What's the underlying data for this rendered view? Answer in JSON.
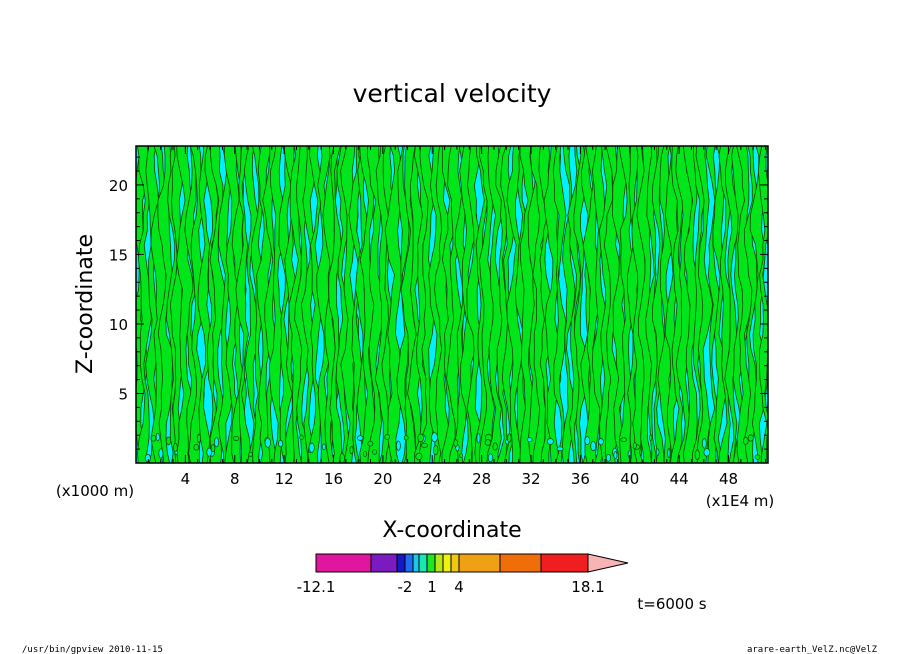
{
  "chart_data": {
    "type": "heatmap",
    "title": "vertical velocity",
    "xlabel": "X-coordinate",
    "ylabel": "Z-coordinate",
    "xunit": "(x1E4 m)",
    "yunit": "(x1000 m)",
    "xlim": [
      0,
      51.2
    ],
    "ylim": [
      0,
      22.8
    ],
    "xticks": [
      "4",
      "8",
      "12",
      "16",
      "20",
      "24",
      "28",
      "32",
      "36",
      "40",
      "44",
      "48"
    ],
    "yticks": [
      "5",
      "10",
      "15",
      "20"
    ],
    "time_label": "t=6000 s",
    "colorbar": {
      "labels": [
        "-12.1",
        "-2",
        "1",
        "4",
        "18.1"
      ],
      "colors": [
        "#e0169e",
        "#7a1bc0",
        "#1419c8",
        "#1f6cf0",
        "#19c8e8",
        "#1ae6b4",
        "#23e623",
        "#b4e61a",
        "#f0f014",
        "#f0c814",
        "#f0a014",
        "#f06e0a",
        "#f01e1e",
        "#f07878",
        "#f8b4b4"
      ]
    },
    "field_colors": {
      "negative": "#00f0ff",
      "positive": "#00e61a",
      "contour": "#1a4400"
    }
  },
  "footer": {
    "left": "/usr/bin/gpview   2010-11-15",
    "right": "arare-earth_VelZ.nc@VelZ"
  }
}
